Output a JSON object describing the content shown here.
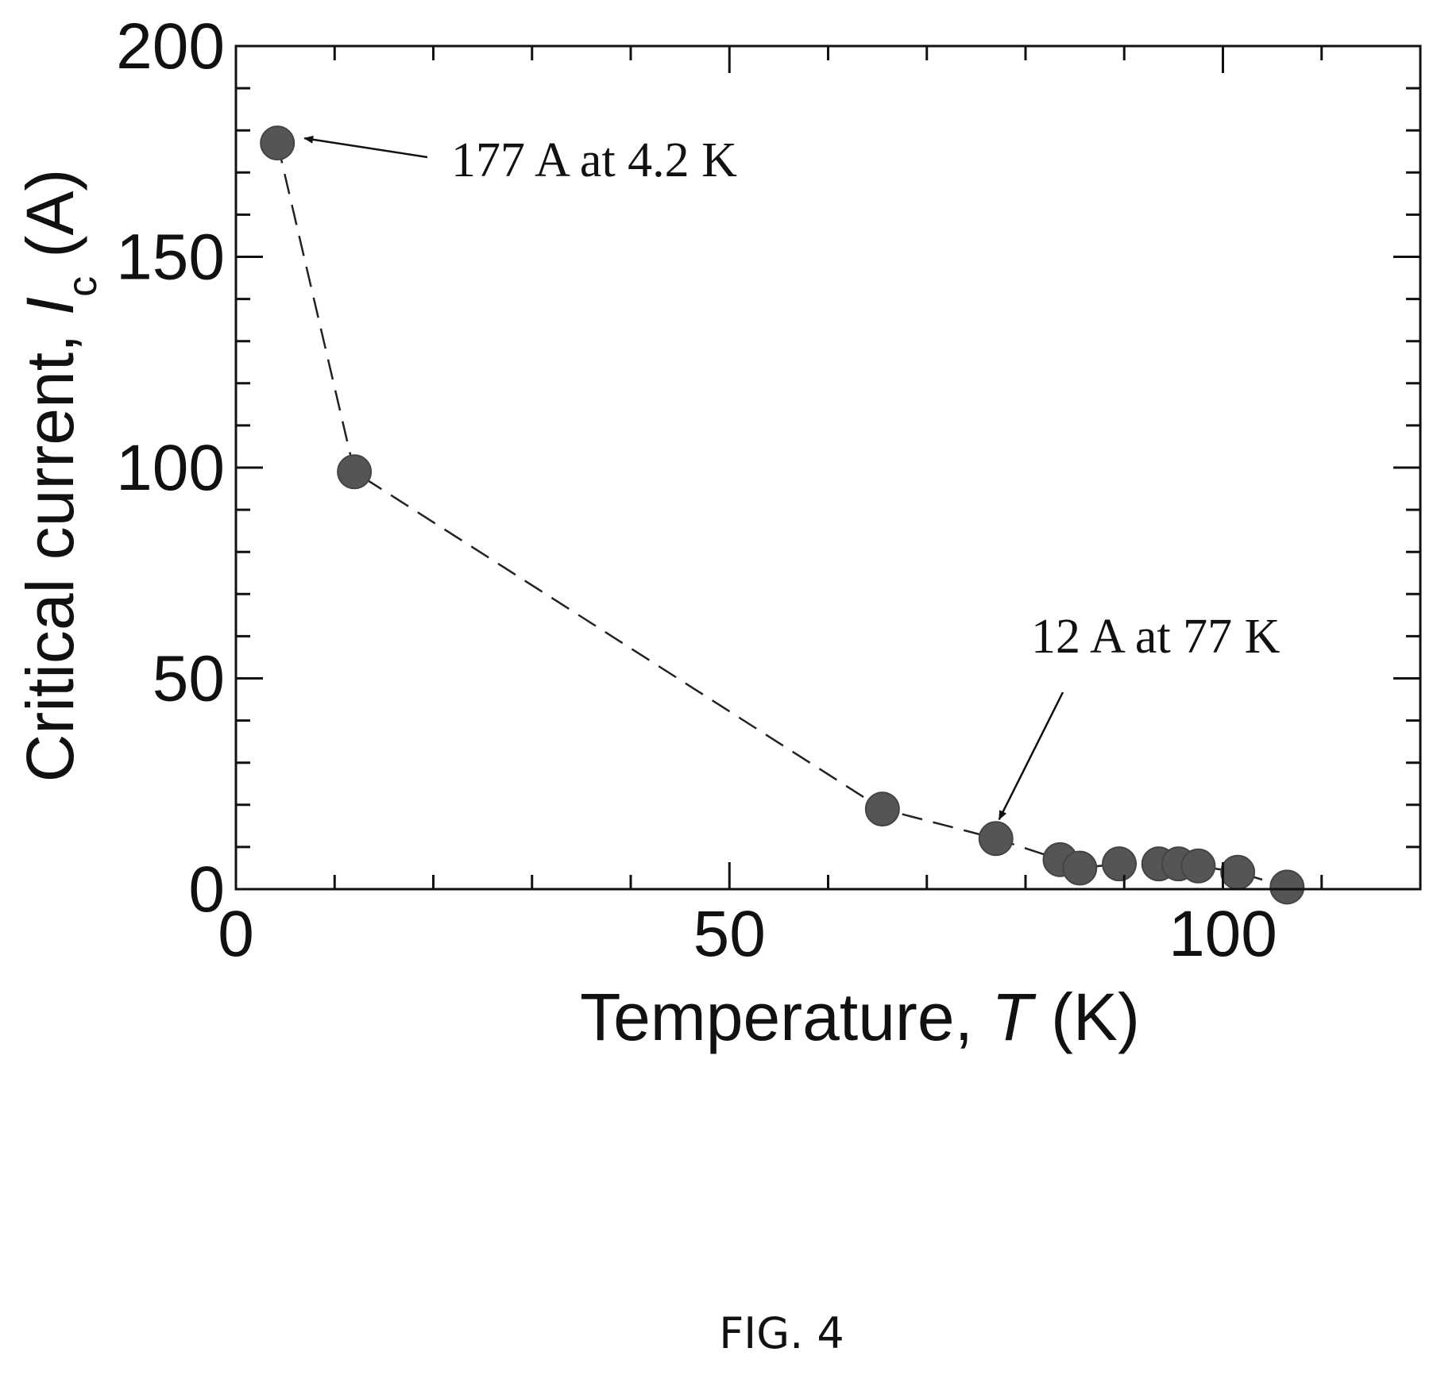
{
  "chart_data": {
    "type": "scatter",
    "xlabel": {
      "prefix": "Temperature, ",
      "symbol": "T",
      "unit": " (K)"
    },
    "ylabel": {
      "prefix": "Critical current, ",
      "symbol": "I",
      "subscript": "c",
      "unit": " (A)"
    },
    "xlim": [
      0,
      120
    ],
    "ylim": [
      0,
      200
    ],
    "x_ticks": [
      0,
      50,
      100
    ],
    "y_ticks": [
      0,
      50,
      100,
      150,
      200
    ],
    "x_minor_step": 10,
    "y_minor_step": 10,
    "series": [
      {
        "marker_color": "#555555",
        "line_style": "dashed",
        "points": [
          {
            "x": 4.2,
            "y": 177
          },
          {
            "x": 12,
            "y": 99
          },
          {
            "x": 65.5,
            "y": 19
          },
          {
            "x": 77,
            "y": 12
          },
          {
            "x": 83.5,
            "y": 7
          },
          {
            "x": 85.5,
            "y": 5
          },
          {
            "x": 89.5,
            "y": 6
          },
          {
            "x": 93.5,
            "y": 6
          },
          {
            "x": 95.5,
            "y": 6
          },
          {
            "x": 97.5,
            "y": 5.5
          },
          {
            "x": 101.5,
            "y": 4
          },
          {
            "x": 106.5,
            "y": 0.5
          }
        ]
      }
    ],
    "annotations": [
      {
        "text": "177 A at 4.2 K",
        "target": {
          "x": 4.2,
          "y": 177
        }
      },
      {
        "text": "12 A at 77 K",
        "target": {
          "x": 77,
          "y": 12
        }
      }
    ]
  },
  "caption": "FIG. 4"
}
